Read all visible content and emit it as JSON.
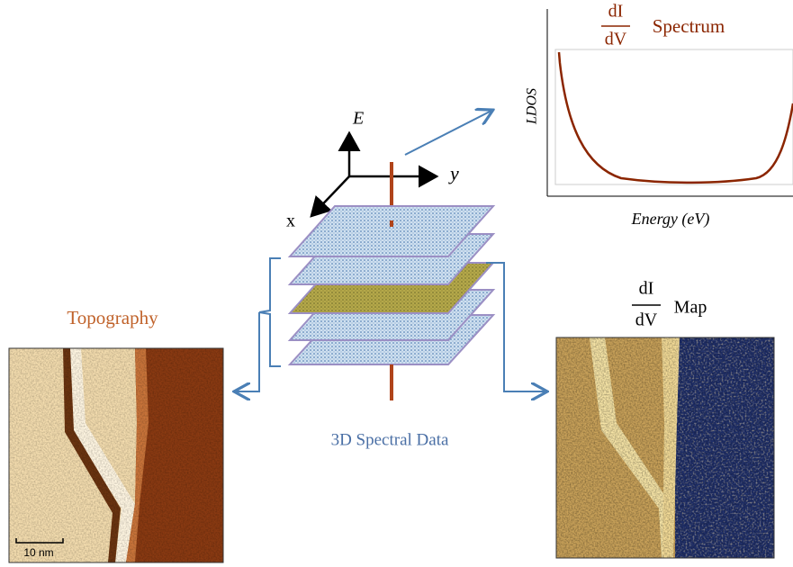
{
  "spectrum": {
    "numerator": "dI",
    "denominator": "dV",
    "title": "Spectrum",
    "y_label": "LDOS",
    "x_label": "Energy (eV)"
  },
  "axes": {
    "e": "E",
    "y": "y",
    "x": "x"
  },
  "stack_label": "3D Spectral Data",
  "topography": {
    "title": "Topography",
    "scale_bar": "10 nm"
  },
  "map": {
    "numerator": "dI",
    "denominator": "dV",
    "title": "Map"
  }
}
